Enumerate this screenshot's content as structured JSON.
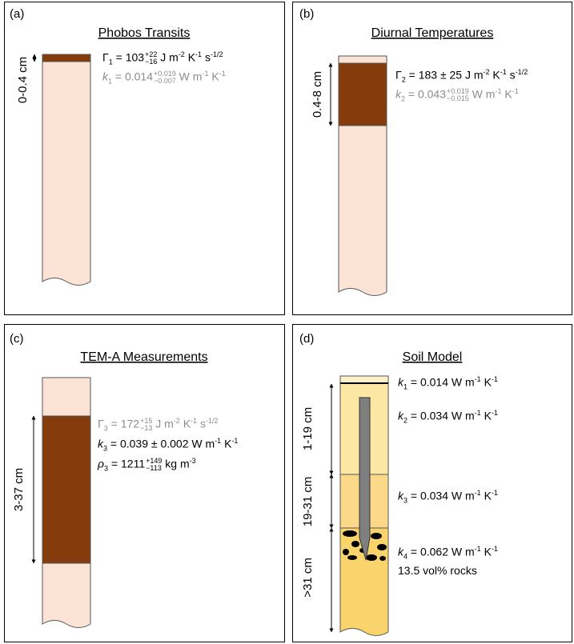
{
  "panels": [
    {
      "label": "(a)",
      "title": "Phobos Transits",
      "depth_labels": [
        "0-0.4 cm"
      ],
      "equations": [
        {
          "color": "#000000",
          "parts": [
            {
              "text": "Γ",
              "sub": "1"
            },
            {
              "text": " = 103",
              "sup": "+22",
              "sub": "−16"
            },
            {
              "text": " J m",
              "sup": "-2"
            },
            {
              "text": " K",
              "sup": "-1"
            },
            {
              "text": " s",
              "sup": "-1/2"
            }
          ]
        },
        {
          "color": "#8c8c8c",
          "parts": [
            {
              "text": "k",
              "italic": true,
              "sub": "1"
            },
            {
              "text": " = 0.014",
              "sup": "+0.019",
              "sub": "−0.007"
            },
            {
              "text": " W m",
              "sup": "-1"
            },
            {
              "text": " K",
              "sup": "-1"
            }
          ]
        }
      ]
    },
    {
      "label": "(b)",
      "title": "Diurnal Temperatures",
      "depth_labels": [
        "0.4-8 cm"
      ],
      "equations": [
        {
          "color": "#000000",
          "parts": [
            {
              "text": "Γ",
              "sub": "2"
            },
            {
              "text": " = 183 ± 25 J m",
              "sup": "-2"
            },
            {
              "text": " K",
              "sup": "-1"
            },
            {
              "text": " s",
              "sup": "-1/2"
            }
          ]
        },
        {
          "color": "#8c8c8c",
          "parts": [
            {
              "text": "k",
              "italic": true,
              "sub": "2"
            },
            {
              "text": " = 0.043",
              "sup": "+0.019",
              "sub": "−0.015"
            },
            {
              "text": " W m",
              "sup": "-1"
            },
            {
              "text": " K",
              "sup": "-1"
            }
          ]
        }
      ]
    },
    {
      "label": "(c)",
      "title": "TEM-A Measurements",
      "depth_labels": [
        "3-37 cm"
      ],
      "equations": [
        {
          "color": "#8c8c8c",
          "parts": [
            {
              "text": "Γ",
              "sub": "3"
            },
            {
              "text": " = 172",
              "sup": "+15",
              "sub": "−13"
            },
            {
              "text": " J m",
              "sup": "-2"
            },
            {
              "text": " K",
              "sup": "-1"
            },
            {
              "text": " s",
              "sup": "-1/2"
            }
          ]
        },
        {
          "color": "#000000",
          "parts": [
            {
              "text": "k",
              "italic": true,
              "sub": "3"
            },
            {
              "text": " = 0.039 ± 0.002 W m",
              "sup": "-1"
            },
            {
              "text": " K",
              "sup": "-1"
            }
          ]
        },
        {
          "color": "#000000",
          "parts": [
            {
              "text": "ρ",
              "italic": true,
              "sub": "3"
            },
            {
              "text": " = 1211",
              "sup": "+149",
              "sub": "−113"
            },
            {
              "text": " kg m",
              "sup": "-3"
            }
          ]
        }
      ]
    },
    {
      "label": "(d)",
      "title": "Soil Model",
      "depth_labels": [
        "1-19 cm",
        "19-31 cm",
        ">31 cm"
      ],
      "note": "13.5 vol% rocks",
      "equations": [
        {
          "color": "#000000",
          "parts": [
            {
              "text": "k",
              "italic": true,
              "sub": "1"
            },
            {
              "text": " = 0.014 W m",
              "sup": "-1"
            },
            {
              "text": " K",
              "sup": "-1"
            }
          ]
        },
        {
          "color": "#000000",
          "parts": [
            {
              "text": "k",
              "italic": true,
              "sub": "2"
            },
            {
              "text": " = 0.034 W m",
              "sup": "-1"
            },
            {
              "text": " K",
              "sup": "-1"
            }
          ]
        },
        {
          "color": "#000000",
          "parts": [
            {
              "text": "k",
              "italic": true,
              "sub": "3"
            },
            {
              "text": " = 0.034 W m",
              "sup": "-1"
            },
            {
              "text": " K",
              "sup": "-1"
            }
          ]
        },
        {
          "color": "#000000",
          "parts": [
            {
              "text": "k",
              "italic": true,
              "sub": "4"
            },
            {
              "text": " = 0.062 W m",
              "sup": "-1"
            },
            {
              "text": " K",
              "sup": "-1"
            }
          ]
        }
      ]
    }
  ]
}
